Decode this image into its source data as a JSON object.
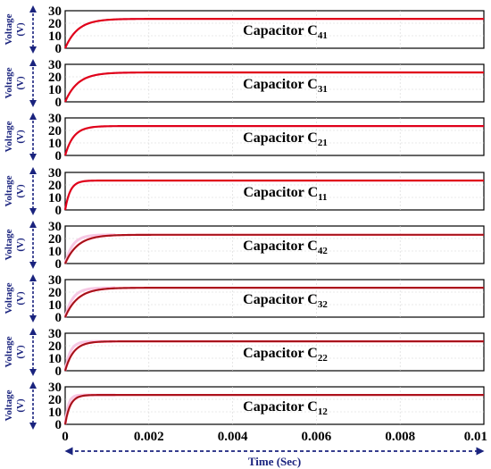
{
  "chart_data": {
    "type": "line",
    "y_label_main": "Voltage",
    "y_label_unit": "(V)",
    "x_label": "Time (Sec)",
    "x_ticks": [
      "0",
      "0.002",
      "0.004",
      "0.006",
      "0.008",
      "0.01"
    ],
    "xlim": [
      0,
      0.01
    ],
    "ylim": [
      0,
      30
    ],
    "y_ticks": [
      "0",
      "10",
      "20",
      "30"
    ],
    "grid": true,
    "line_color": "#e0001a",
    "panels": [
      {
        "title": "Capacitor C",
        "subscript": "41",
        "steady_state": 23.5,
        "tau": 0.0003,
        "dark": false
      },
      {
        "title": "Capacitor C",
        "subscript": "31",
        "steady_state": 23.5,
        "tau": 0.0003,
        "dark": false
      },
      {
        "title": "Capacitor C",
        "subscript": "21",
        "steady_state": 23.5,
        "tau": 0.0002,
        "dark": false
      },
      {
        "title": "Capacitor C",
        "subscript": "11",
        "steady_state": 23.5,
        "tau": 0.00012,
        "dark": false
      },
      {
        "title": "Capacitor C",
        "subscript": "42",
        "steady_state": 23.0,
        "tau": 0.0003,
        "dark": true
      },
      {
        "title": "Capacitor C",
        "subscript": "32",
        "steady_state": 23.5,
        "tau": 0.0003,
        "dark": true
      },
      {
        "title": "Capacitor C",
        "subscript": "22",
        "steady_state": 23.5,
        "tau": 0.0002,
        "dark": true
      },
      {
        "title": "Capacitor C",
        "subscript": "12",
        "steady_state": 23.5,
        "tau": 0.00012,
        "dark": true
      }
    ]
  }
}
